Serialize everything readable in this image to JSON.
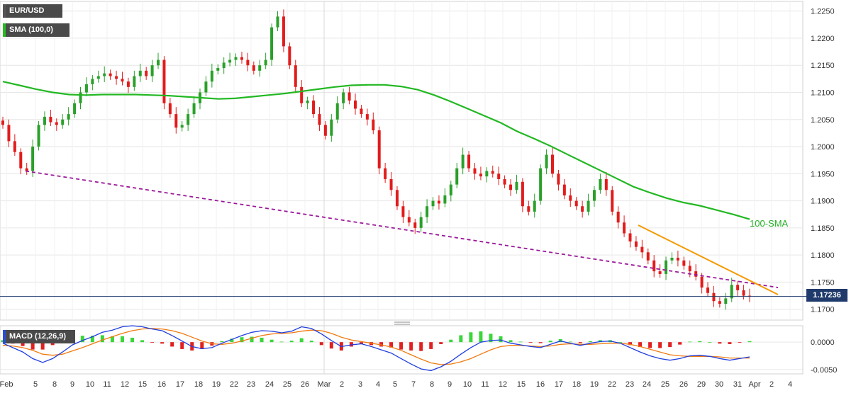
{
  "chart_data": {
    "type": "candlestick",
    "symbol": "EUR/USD",
    "indicator_label": "SMA (100,0)",
    "macd_label": "MACD (12,26,9)",
    "sma_annotation": "100-SMA",
    "last_price": "1.17236",
    "price_axis": {
      "ticks": [
        "1.2250",
        "1.2200",
        "1.2150",
        "1.2100",
        "1.2050",
        "1.2000",
        "1.1950",
        "1.1900",
        "1.1850",
        "1.1800",
        "1.1750",
        "1.1700"
      ],
      "ylim": [
        1.168,
        1.226
      ]
    },
    "macd_axis": {
      "ticks": [
        "0.0000",
        "-0.0050"
      ],
      "ylim": [
        -0.0058,
        0.003
      ]
    },
    "x_ticks": [
      "Feb",
      "5",
      "8",
      "9",
      "10",
      "11",
      "12",
      "15",
      "16",
      "17",
      "18",
      "19",
      "22",
      "23",
      "24",
      "25",
      "26",
      "Mar",
      "2",
      "3",
      "4",
      "5",
      "7",
      "8",
      "9",
      "10",
      "11",
      "12",
      "15",
      "16",
      "17",
      "18",
      "19",
      "22",
      "23",
      "24",
      "25",
      "26",
      "29",
      "30",
      "31",
      "Apr",
      "2",
      "4"
    ],
    "price_series": [
      1.204,
      1.201,
      1.199,
      1.196,
      1.1955,
      1.2,
      1.204,
      1.2055,
      1.2045,
      1.204,
      1.205,
      1.206,
      1.208,
      1.21,
      1.2115,
      1.2125,
      1.213,
      1.2135,
      1.213,
      1.2125,
      1.212,
      1.211,
      1.213,
      1.214,
      1.213,
      1.215,
      1.216,
      1.208,
      1.206,
      1.2035,
      1.204,
      1.206,
      1.208,
      1.21,
      1.212,
      1.214,
      1.2145,
      1.2155,
      1.216,
      1.2165,
      1.216,
      1.215,
      1.214,
      1.215,
      1.216,
      1.222,
      1.224,
      1.2185,
      1.215,
      1.211,
      1.208,
      1.2085,
      1.206,
      1.204,
      1.202,
      1.205,
      1.208,
      1.21,
      1.2085,
      1.207,
      1.206,
      1.205,
      1.203,
      1.196,
      1.194,
      1.192,
      1.189,
      1.187,
      1.186,
      1.185,
      1.187,
      1.189,
      1.19,
      1.1895,
      1.191,
      1.193,
      1.196,
      1.1985,
      1.196,
      1.195,
      1.1945,
      1.1955,
      1.195,
      1.194,
      1.193,
      1.192,
      1.1935,
      1.189,
      1.188,
      1.19,
      1.196,
      1.1985,
      1.195,
      1.193,
      1.191,
      1.19,
      1.189,
      1.188,
      1.19,
      1.192,
      1.194,
      1.192,
      1.188,
      1.186,
      1.184,
      1.1825,
      1.1815,
      1.1805,
      1.179,
      1.177,
      1.1765,
      1.179,
      1.1795,
      1.179,
      1.178,
      1.177,
      1.176,
      1.174,
      1.173,
      1.1715,
      1.171,
      1.172,
      1.1745,
      1.1735,
      1.1725,
      1.1724
    ],
    "sma_series": [
      1.212,
      1.2113,
      1.2106,
      1.21,
      1.2096,
      1.2095,
      1.2096,
      1.2096,
      1.2096,
      1.2095,
      1.2094,
      1.2092,
      1.209,
      1.2088,
      1.2089,
      1.2092,
      1.2095,
      1.2098,
      1.2102,
      1.2106,
      1.211,
      1.2113,
      1.2114,
      1.2114,
      1.2111,
      1.2105,
      1.2095,
      1.2083,
      1.207,
      1.2057,
      1.2044,
      1.2028,
      1.2015,
      1.2001,
      1.1986,
      1.1971,
      1.1956,
      1.1941,
      1.1926,
      1.1915,
      1.1905,
      1.1897,
      1.1891,
      1.1883,
      1.1875,
      1.1866
    ],
    "dashed_support": {
      "start": 1.1955,
      "end": 1.174
    },
    "orange_resistance": {
      "start": 1.1855,
      "end": 1.1727
    },
    "macd_line": [
      -0.0002,
      -0.001,
      -0.0018,
      -0.003,
      -0.0037,
      -0.003,
      -0.0018,
      -0.0005,
      0.0003,
      0.001,
      0.0018,
      0.0022,
      0.0028,
      0.003,
      0.0028,
      0.0024,
      0.0021,
      0.0012,
      0.0002,
      -0.0008,
      -0.0012,
      -0.001,
      -0.0002,
      0.0005,
      0.0012,
      0.0018,
      0.0021,
      0.002,
      0.0017,
      0.002,
      0.0028,
      0.0025,
      0.0015,
      0.0003,
      -0.0008,
      -0.0005,
      -0.0003,
      -0.0008,
      -0.0014,
      -0.002,
      -0.003,
      -0.004,
      -0.0049,
      -0.0052,
      -0.0045,
      -0.0035,
      -0.0022,
      -0.001,
      0.0,
      0.0003,
      0.0004,
      -0.0002,
      -0.0005,
      -0.0008,
      -0.001,
      -0.0004,
      0.0002,
      -0.0002,
      -0.0006,
      -0.0002,
      0.0001,
      0.0002,
      -0.0002,
      -0.001,
      -0.0018,
      -0.0025,
      -0.003,
      -0.0033,
      -0.003,
      -0.0025,
      -0.0024,
      -0.0026,
      -0.003,
      -0.0033,
      -0.003,
      -0.0027
    ],
    "signal_line": [
      -0.0006,
      -0.0007,
      -0.001,
      -0.0015,
      -0.0022,
      -0.0024,
      -0.0022,
      -0.0016,
      -0.001,
      -0.0003,
      0.0004,
      0.001,
      0.0016,
      0.0021,
      0.0024,
      0.0025,
      0.0024,
      0.0021,
      0.0016,
      0.0009,
      0.0002,
      -0.0003,
      -0.0004,
      -0.0002,
      0.0002,
      0.0007,
      0.0012,
      0.0015,
      0.0016,
      0.0017,
      0.002,
      0.0022,
      0.0021,
      0.0016,
      0.0009,
      0.0004,
      0.0001,
      -0.0002,
      -0.0005,
      -0.0009,
      -0.0015,
      -0.0023,
      -0.0031,
      -0.0038,
      -0.0041,
      -0.004,
      -0.0036,
      -0.003,
      -0.0022,
      -0.0014,
      -0.0008,
      -0.0006,
      -0.0006,
      -0.0007,
      -0.0008,
      -0.0007,
      -0.0004,
      -0.0003,
      -0.0004,
      -0.0004,
      -0.0003,
      -0.0002,
      -0.0002,
      -0.0004,
      -0.0008,
      -0.0013,
      -0.0018,
      -0.0023,
      -0.0025,
      -0.0026,
      -0.0026,
      -0.0026,
      -0.0027,
      -0.0029,
      -0.0029,
      -0.0029
    ],
    "grid": true
  },
  "colors": {
    "bull": "#2aa02a",
    "bear": "#e21b1b",
    "sma": "#22b822",
    "dashed": "#9b189b",
    "orange": "#f59a00",
    "macd": "#1f3ee0",
    "signal": "#f07a10",
    "hist_pos": "#3ad63a",
    "hist_neg": "#e02020",
    "hline": "#1f3a6b",
    "grid": "#e6e6e6"
  }
}
